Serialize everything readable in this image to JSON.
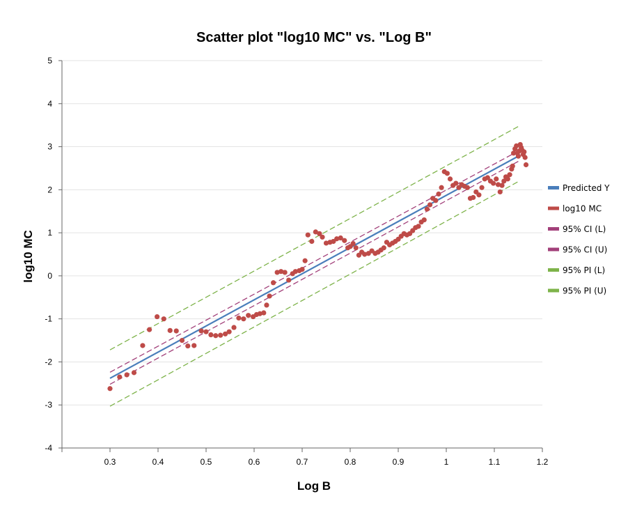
{
  "chart_data": {
    "type": "scatter",
    "title": "Scatter plot \"log10 MC\" vs. \"Log B\"",
    "xlabel": "Log B",
    "ylabel": "log10 MC",
    "xlim": [
      0.2,
      1.2
    ],
    "ylim": [
      -4,
      5
    ],
    "x_ticks": [
      "0.3",
      "0.4",
      "0.5",
      "0.6",
      "0.7",
      "0.8",
      "0.9",
      "1",
      "1.1",
      "1.2"
    ],
    "y_ticks": [
      "5",
      "4",
      "3",
      "2",
      "1",
      "0",
      "-1",
      "-2",
      "-3",
      "-4"
    ],
    "grid": true,
    "legend_position": "right",
    "legend": [
      {
        "label": "Predicted Y",
        "color": "#4a7ebb"
      },
      {
        "label": "log10 MC",
        "color": "#be4b48"
      },
      {
        "label": "95% CI (L)",
        "color": "#a2407a"
      },
      {
        "label": "95% CI (U)",
        "color": "#a2407a"
      },
      {
        "label": "95% PI (L)",
        "color": "#7eb34a"
      },
      {
        "label": "95% PI (U)",
        "color": "#7eb34a"
      }
    ],
    "series": [
      {
        "name": "Predicted Y",
        "kind": "line",
        "color": "#4a7ebb",
        "x": [
          0.3,
          1.15
        ],
        "y": [
          -2.38,
          2.78
        ]
      },
      {
        "name": "95% CI (L)",
        "kind": "dashed",
        "color": "#a2407a",
        "x": [
          0.3,
          1.15
        ],
        "y": [
          -2.52,
          2.66
        ]
      },
      {
        "name": "95% CI (U)",
        "kind": "dashed",
        "color": "#a2407a",
        "x": [
          0.3,
          1.15
        ],
        "y": [
          -2.24,
          2.9
        ]
      },
      {
        "name": "95% PI (L)",
        "kind": "dashed",
        "color": "#7eb34a",
        "x": [
          0.3,
          1.15
        ],
        "y": [
          -3.03,
          2.19
        ]
      },
      {
        "name": "95% PI (U)",
        "kind": "dashed",
        "color": "#7eb34a",
        "x": [
          0.3,
          1.15
        ],
        "y": [
          -1.72,
          3.47
        ]
      },
      {
        "name": "log10 MC",
        "kind": "points",
        "color": "#be4b48",
        "points": [
          [
            0.3,
            -2.62
          ],
          [
            0.32,
            -2.35
          ],
          [
            0.335,
            -2.3
          ],
          [
            0.35,
            -2.25
          ],
          [
            0.368,
            -1.62
          ],
          [
            0.382,
            -1.25
          ],
          [
            0.398,
            -0.95
          ],
          [
            0.412,
            -1.0
          ],
          [
            0.425,
            -1.27
          ],
          [
            0.438,
            -1.28
          ],
          [
            0.45,
            -1.5
          ],
          [
            0.462,
            -1.63
          ],
          [
            0.475,
            -1.62
          ],
          [
            0.49,
            -1.28
          ],
          [
            0.5,
            -1.3
          ],
          [
            0.51,
            -1.37
          ],
          [
            0.52,
            -1.39
          ],
          [
            0.53,
            -1.38
          ],
          [
            0.54,
            -1.35
          ],
          [
            0.548,
            -1.3
          ],
          [
            0.558,
            -1.2
          ],
          [
            0.568,
            -0.98
          ],
          [
            0.578,
            -1.0
          ],
          [
            0.588,
            -0.92
          ],
          [
            0.598,
            -0.95
          ],
          [
            0.605,
            -0.9
          ],
          [
            0.612,
            -0.88
          ],
          [
            0.62,
            -0.86
          ],
          [
            0.626,
            -0.68
          ],
          [
            0.632,
            -0.47
          ],
          [
            0.64,
            -0.16
          ],
          [
            0.648,
            0.08
          ],
          [
            0.656,
            0.1
          ],
          [
            0.664,
            0.08
          ],
          [
            0.672,
            -0.1
          ],
          [
            0.68,
            0.05
          ],
          [
            0.686,
            0.1
          ],
          [
            0.694,
            0.12
          ],
          [
            0.7,
            0.15
          ],
          [
            0.706,
            0.35
          ],
          [
            0.712,
            0.95
          ],
          [
            0.72,
            0.8
          ],
          [
            0.728,
            1.02
          ],
          [
            0.736,
            0.98
          ],
          [
            0.742,
            0.9
          ],
          [
            0.75,
            0.76
          ],
          [
            0.758,
            0.78
          ],
          [
            0.765,
            0.8
          ],
          [
            0.772,
            0.86
          ],
          [
            0.78,
            0.88
          ],
          [
            0.788,
            0.82
          ],
          [
            0.795,
            0.65
          ],
          [
            0.8,
            0.68
          ],
          [
            0.806,
            0.75
          ],
          [
            0.812,
            0.65
          ],
          [
            0.818,
            0.48
          ],
          [
            0.824,
            0.55
          ],
          [
            0.83,
            0.5
          ],
          [
            0.838,
            0.52
          ],
          [
            0.845,
            0.58
          ],
          [
            0.852,
            0.52
          ],
          [
            0.858,
            0.55
          ],
          [
            0.864,
            0.6
          ],
          [
            0.87,
            0.65
          ],
          [
            0.876,
            0.78
          ],
          [
            0.882,
            0.72
          ],
          [
            0.888,
            0.76
          ],
          [
            0.894,
            0.8
          ],
          [
            0.9,
            0.85
          ],
          [
            0.906,
            0.92
          ],
          [
            0.912,
            0.98
          ],
          [
            0.918,
            0.95
          ],
          [
            0.924,
            0.98
          ],
          [
            0.93,
            1.05
          ],
          [
            0.936,
            1.12
          ],
          [
            0.942,
            1.15
          ],
          [
            0.948,
            1.25
          ],
          [
            0.954,
            1.3
          ],
          [
            0.96,
            1.55
          ],
          [
            0.966,
            1.65
          ],
          [
            0.972,
            1.8
          ],
          [
            0.978,
            1.75
          ],
          [
            0.984,
            1.9
          ],
          [
            0.99,
            2.05
          ],
          [
            0.996,
            2.42
          ],
          [
            1.002,
            2.38
          ],
          [
            1.008,
            2.25
          ],
          [
            1.014,
            2.1
          ],
          [
            1.02,
            2.15
          ],
          [
            1.026,
            2.05
          ],
          [
            1.032,
            2.12
          ],
          [
            1.038,
            2.08
          ],
          [
            1.044,
            2.05
          ],
          [
            1.05,
            1.8
          ],
          [
            1.056,
            1.82
          ],
          [
            1.062,
            1.95
          ],
          [
            1.068,
            1.88
          ],
          [
            1.074,
            2.05
          ],
          [
            1.08,
            2.25
          ],
          [
            1.086,
            2.28
          ],
          [
            1.092,
            2.2
          ],
          [
            1.098,
            2.15
          ],
          [
            1.104,
            2.25
          ],
          [
            1.108,
            2.12
          ],
          [
            1.112,
            1.95
          ],
          [
            1.116,
            2.1
          ],
          [
            1.12,
            2.2
          ],
          [
            1.124,
            2.3
          ],
          [
            1.128,
            2.25
          ],
          [
            1.132,
            2.35
          ],
          [
            1.136,
            2.48
          ],
          [
            1.138,
            2.55
          ],
          [
            1.14,
            2.85
          ],
          [
            1.143,
            2.95
          ],
          [
            1.146,
            3.02
          ],
          [
            1.148,
            2.85
          ],
          [
            1.15,
            2.78
          ],
          [
            1.152,
            2.9
          ],
          [
            1.154,
            3.05
          ],
          [
            1.156,
            2.98
          ],
          [
            1.158,
            2.92
          ],
          [
            1.16,
            2.82
          ],
          [
            1.162,
            2.88
          ],
          [
            1.164,
            2.75
          ],
          [
            1.166,
            2.58
          ]
        ]
      }
    ]
  }
}
